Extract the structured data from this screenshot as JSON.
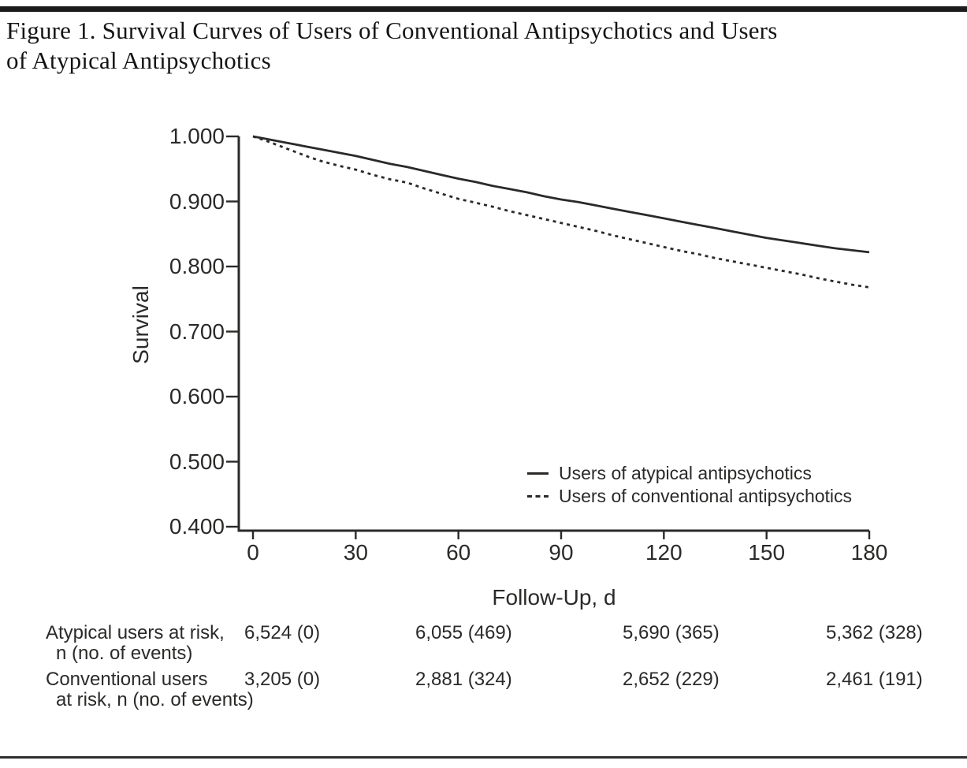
{
  "figure": {
    "title_lines": [
      "Figure 1. Survival Curves of Users of Conventional Antipsychotics and Users",
      "of Atypical Antipsychotics"
    ]
  },
  "chart_data": {
    "type": "line",
    "title": "",
    "xlabel": "Follow-Up, d",
    "ylabel": "Survival",
    "xlim": [
      0,
      180
    ],
    "ylim": [
      0.4,
      1.0
    ],
    "grid": false,
    "legend_position": "lower right",
    "x_ticks": [
      0,
      30,
      60,
      90,
      120,
      150,
      180
    ],
    "y_tick_labels": [
      "1.000",
      "0.900",
      "0.800",
      "0.700",
      "0.600",
      "0.500",
      "0.400"
    ],
    "series": [
      {
        "name": "Users of atypical antipsychotics",
        "style": "solid",
        "x": [
          0,
          4,
          8,
          12,
          16,
          20,
          25,
          30,
          35,
          40,
          45,
          50,
          55,
          60,
          65,
          70,
          75,
          80,
          85,
          90,
          95,
          100,
          105,
          110,
          115,
          120,
          125,
          130,
          135,
          140,
          145,
          150,
          155,
          160,
          165,
          170,
          175,
          180
        ],
        "y": [
          1.0,
          0.996,
          0.992,
          0.988,
          0.984,
          0.98,
          0.975,
          0.97,
          0.964,
          0.958,
          0.953,
          0.947,
          0.941,
          0.935,
          0.93,
          0.924,
          0.919,
          0.914,
          0.908,
          0.903,
          0.899,
          0.894,
          0.889,
          0.884,
          0.879,
          0.874,
          0.869,
          0.864,
          0.859,
          0.854,
          0.849,
          0.844,
          0.84,
          0.836,
          0.832,
          0.828,
          0.825,
          0.822
        ]
      },
      {
        "name": "Users of conventional antipsychotics",
        "style": "dashed",
        "x": [
          0,
          4,
          8,
          12,
          16,
          20,
          25,
          30,
          35,
          40,
          45,
          50,
          55,
          60,
          65,
          70,
          75,
          80,
          85,
          90,
          95,
          100,
          105,
          110,
          115,
          120,
          125,
          130,
          135,
          140,
          145,
          150,
          155,
          160,
          165,
          170,
          175,
          180
        ],
        "y": [
          1.0,
          0.993,
          0.985,
          0.977,
          0.969,
          0.962,
          0.955,
          0.949,
          0.941,
          0.934,
          0.929,
          0.92,
          0.912,
          0.904,
          0.898,
          0.892,
          0.885,
          0.879,
          0.873,
          0.867,
          0.861,
          0.855,
          0.848,
          0.842,
          0.836,
          0.83,
          0.824,
          0.819,
          0.813,
          0.808,
          0.803,
          0.798,
          0.793,
          0.788,
          0.782,
          0.777,
          0.772,
          0.768
        ]
      }
    ],
    "sampled_survival": {
      "days": [
        0,
        30,
        60,
        90,
        120,
        150,
        180
      ],
      "atypical": [
        1.0,
        0.97,
        0.935,
        0.903,
        0.874,
        0.844,
        0.822
      ],
      "conventional": [
        1.0,
        0.949,
        0.904,
        0.867,
        0.83,
        0.798,
        0.768
      ]
    }
  },
  "legend": {
    "items": [
      {
        "label": "Users of atypical antipsychotics",
        "style": "solid"
      },
      {
        "label": "Users of conventional antipsychotics",
        "style": "dashed"
      }
    ]
  },
  "risk_table": {
    "rows": [
      {
        "label_line1": "Atypical users at risk,",
        "label_line2": "n (no. of events)",
        "values": [
          "6,524 (0)",
          "6,055 (469)",
          "5,690 (365)",
          "5,362 (328)"
        ]
      },
      {
        "label_line1": "Conventional users",
        "label_line2": "at risk, n (no. of events)",
        "values": [
          "3,205 (0)",
          "2,881 (324)",
          "2,652 (229)",
          "2,461 (191)"
        ]
      }
    ]
  },
  "colors": {
    "ink": "#2b2a29",
    "title": "#141414",
    "background": "#ffffff"
  }
}
